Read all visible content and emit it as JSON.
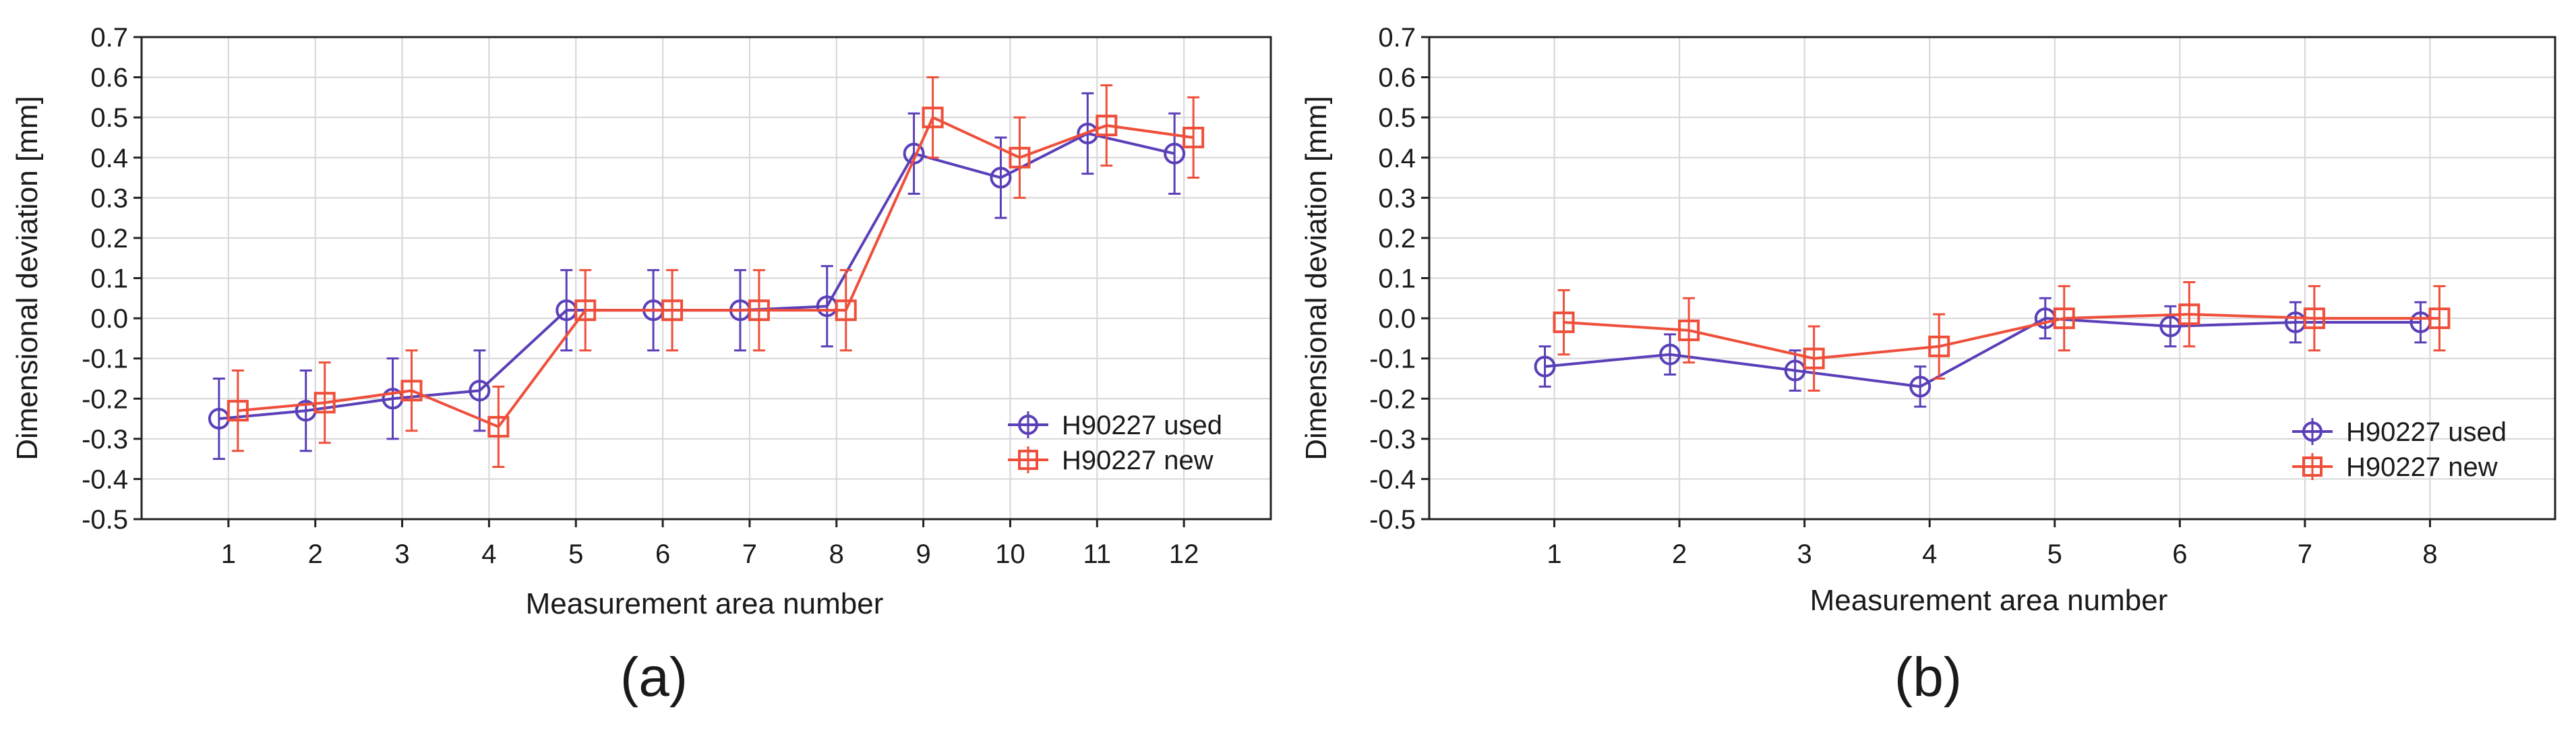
{
  "chart_data": [
    {
      "type": "line",
      "panel_label": "(a)",
      "xlabel": "Measurement area number",
      "ylabel": "Dimensional deviation [mm]",
      "categories": [
        "1",
        "2",
        "3",
        "4",
        "5",
        "6",
        "7",
        "8",
        "9",
        "10",
        "11",
        "12"
      ],
      "ylim": [
        -0.5,
        0.7
      ],
      "yticks": [
        "-0.5",
        "-0.4",
        "-0.3",
        "-0.2",
        "-0.1",
        "0.0",
        "0.1",
        "0.2",
        "0.3",
        "0.4",
        "0.5",
        "0.6",
        "0.7"
      ],
      "grid": true,
      "legend_position": "bottom-right",
      "series": [
        {
          "name": "H90227 used",
          "color": "#5b3fb8",
          "marker": "circle",
          "values": [
            -0.25,
            -0.23,
            -0.2,
            -0.18,
            0.02,
            0.02,
            0.02,
            0.03,
            0.41,
            0.35,
            0.46,
            0.41
          ],
          "error": [
            0.1,
            0.1,
            0.1,
            0.1,
            0.1,
            0.1,
            0.1,
            0.1,
            0.1,
            0.1,
            0.1,
            0.1
          ]
        },
        {
          "name": "H90227 new",
          "color": "#ef4f3a",
          "marker": "square",
          "values": [
            -0.23,
            -0.21,
            -0.18,
            -0.27,
            0.02,
            0.02,
            0.02,
            0.02,
            0.5,
            0.4,
            0.48,
            0.45
          ],
          "error": [
            0.1,
            0.1,
            0.1,
            0.1,
            0.1,
            0.1,
            0.1,
            0.1,
            0.1,
            0.1,
            0.1,
            0.1
          ]
        }
      ]
    },
    {
      "type": "line",
      "panel_label": "(b)",
      "xlabel": "Measurement area number",
      "ylabel": "Dimensional deviation [mm]",
      "categories": [
        "1",
        "2",
        "3",
        "4",
        "5",
        "6",
        "7",
        "8"
      ],
      "ylim": [
        -0.5,
        0.7
      ],
      "yticks": [
        "-0.5",
        "-0.4",
        "-0.3",
        "-0.2",
        "-0.1",
        "0.0",
        "0.1",
        "0.2",
        "0.3",
        "0.4",
        "0.5",
        "0.6",
        "0.7"
      ],
      "grid": true,
      "legend_position": "bottom-right",
      "series": [
        {
          "name": "H90227 used",
          "color": "#5b3fb8",
          "marker": "circle",
          "values": [
            -0.12,
            -0.09,
            -0.13,
            -0.17,
            0.0,
            -0.02,
            -0.01,
            -0.01
          ],
          "error": [
            0.05,
            0.05,
            0.05,
            0.05,
            0.05,
            0.05,
            0.05,
            0.05
          ]
        },
        {
          "name": "H90227 new",
          "color": "#ef4f3a",
          "marker": "square",
          "values": [
            -0.01,
            -0.03,
            -0.1,
            -0.07,
            0.0,
            0.01,
            0.0,
            0.0
          ],
          "error": [
            0.08,
            0.08,
            0.08,
            0.08,
            0.08,
            0.08,
            0.08,
            0.08
          ]
        }
      ]
    }
  ]
}
